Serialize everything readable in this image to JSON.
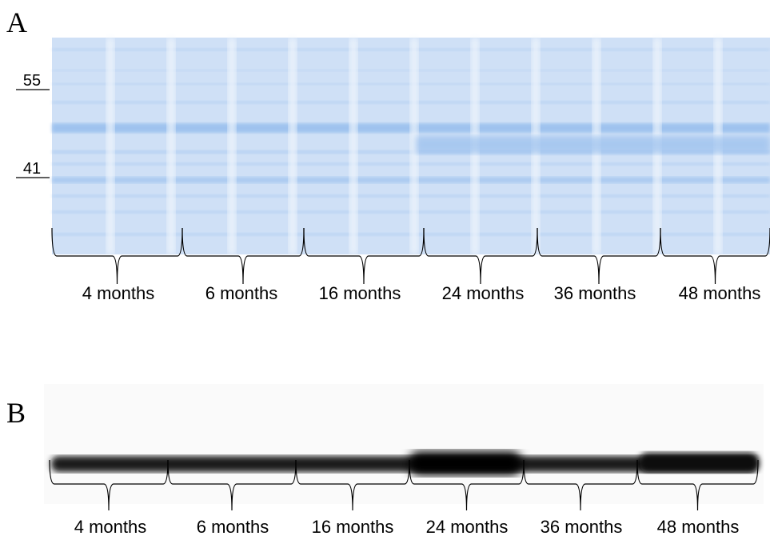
{
  "panels": [
    {
      "label": "A",
      "markers": [
        "55",
        "41"
      ],
      "groups": [
        "4 months",
        "6 months",
        "16 months",
        "24 months",
        "36 months",
        "48 months"
      ]
    },
    {
      "label": "B",
      "groups": [
        "4 months",
        "6 months",
        "16 months",
        "24 months",
        "36 months",
        "48 months"
      ]
    }
  ]
}
